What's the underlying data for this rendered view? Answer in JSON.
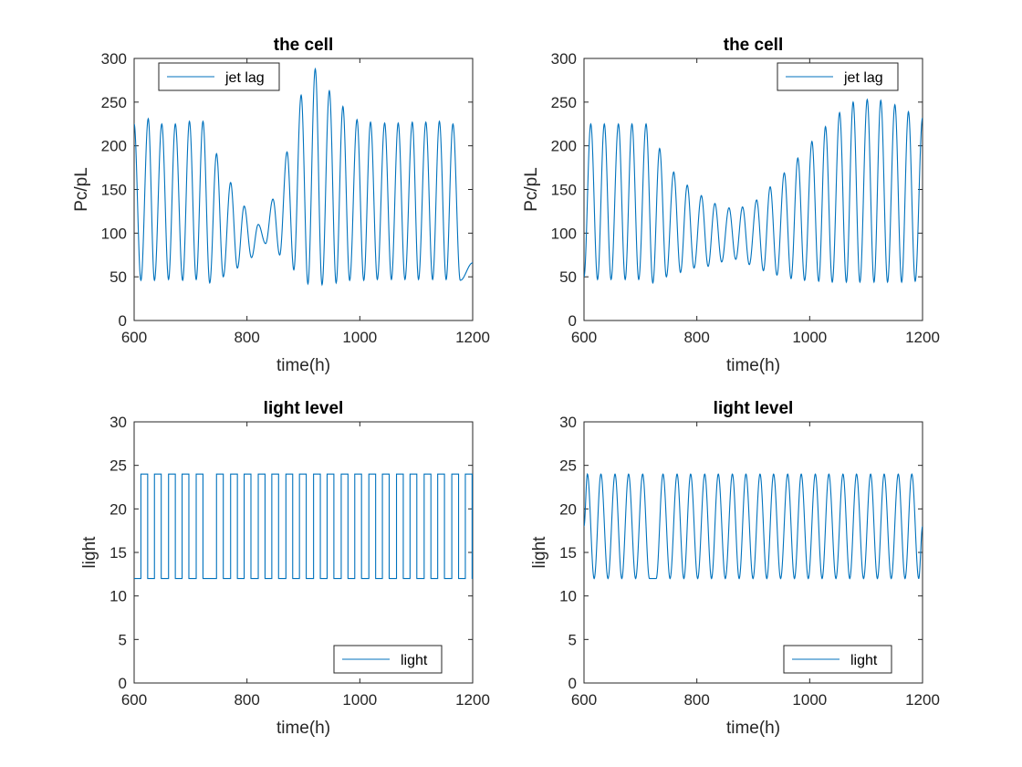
{
  "colors": {
    "series": "#0072BD",
    "axis": "#262626",
    "background": "#ffffff"
  },
  "chart_data": [
    {
      "type": "line",
      "title": "the cell",
      "xlabel": "time(h)",
      "ylabel": "Pc/pL",
      "xlim": [
        600,
        1200
      ],
      "ylim": [
        0,
        300
      ],
      "xticks": [
        600,
        800,
        1000,
        1200
      ],
      "yticks": [
        0,
        50,
        100,
        150,
        200,
        250,
        300
      ],
      "legend": {
        "position": "top-left",
        "entries": [
          "jet lag"
        ]
      },
      "grid": false,
      "series": [
        {
          "name": "jet lag",
          "peaks": [
            [
              600,
              225
            ],
            [
              625,
              231
            ],
            [
              649,
              225
            ],
            [
              673,
              225
            ],
            [
              698,
              228
            ],
            [
              722,
              228
            ],
            [
              746,
              191
            ],
            [
              771,
              158
            ],
            [
              795,
              131
            ],
            [
              820,
              110
            ],
            [
              846,
              139
            ],
            [
              871,
              193
            ],
            [
              896,
              258
            ],
            [
              921,
              288
            ],
            [
              946,
              263
            ],
            [
              970,
              245
            ],
            [
              995,
              230
            ],
            [
              1019,
              227
            ],
            [
              1044,
              226
            ],
            [
              1068,
              226
            ],
            [
              1093,
              227
            ],
            [
              1117,
              227
            ],
            [
              1141,
              228
            ],
            [
              1165,
              225
            ]
          ],
          "troughs": [
            [
              612,
              46
            ],
            [
              636,
              46
            ],
            [
              661,
              47
            ],
            [
              686,
              46
            ],
            [
              710,
              47
            ],
            [
              734,
              43
            ],
            [
              758,
              50
            ],
            [
              783,
              60
            ],
            [
              808,
              72
            ],
            [
              833,
              88
            ],
            [
              858,
              75
            ],
            [
              883,
              58
            ],
            [
              908,
              42
            ],
            [
              933,
              41
            ],
            [
              958,
              43
            ],
            [
              982,
              46
            ],
            [
              1007,
              46
            ],
            [
              1031,
              47
            ],
            [
              1056,
              47
            ],
            [
              1080,
              47
            ],
            [
              1104,
              47
            ],
            [
              1129,
              47
            ],
            [
              1153,
              47
            ],
            [
              1178,
              46
            ]
          ],
          "end_value": 66
        }
      ]
    },
    {
      "type": "line",
      "title": "the cell",
      "xlabel": "time(h)",
      "ylabel": "Pc/pL",
      "xlim": [
        600,
        1200
      ],
      "ylim": [
        0,
        300
      ],
      "xticks": [
        600,
        800,
        1000,
        1200
      ],
      "yticks": [
        0,
        50,
        100,
        150,
        200,
        250,
        300
      ],
      "legend": {
        "position": "top-right",
        "entries": [
          "jet lag"
        ]
      },
      "grid": false,
      "series": [
        {
          "name": "jet lag",
          "start_value": 68,
          "peaks": [
            [
              612,
              225
            ],
            [
              636,
              225
            ],
            [
              661,
              225
            ],
            [
              685,
              225
            ],
            [
              710,
              225
            ],
            [
              734,
              197
            ],
            [
              759,
              170
            ],
            [
              783,
              155
            ],
            [
              808,
              143
            ],
            [
              832,
              134
            ],
            [
              857,
              129
            ],
            [
              881,
              130
            ],
            [
              906,
              138
            ],
            [
              930,
              153
            ],
            [
              955,
              169
            ],
            [
              979,
              186
            ],
            [
              1004,
              205
            ],
            [
              1028,
              222
            ],
            [
              1053,
              238
            ],
            [
              1077,
              250
            ],
            [
              1102,
              253
            ],
            [
              1126,
              252
            ],
            [
              1151,
              247
            ],
            [
              1175,
              239
            ],
            [
              1200,
              232
            ]
          ],
          "troughs": [
            [
              600,
              50
            ],
            [
              624,
              47
            ],
            [
              648,
              47
            ],
            [
              673,
              47
            ],
            [
              697,
              47
            ],
            [
              722,
              43
            ],
            [
              746,
              50
            ],
            [
              771,
              55
            ],
            [
              795,
              60
            ],
            [
              820,
              62
            ],
            [
              844,
              67
            ],
            [
              869,
              70
            ],
            [
              893,
              64
            ],
            [
              918,
              57
            ],
            [
              942,
              52
            ],
            [
              967,
              48
            ],
            [
              991,
              46
            ],
            [
              1016,
              45
            ],
            [
              1040,
              44
            ],
            [
              1065,
              44
            ],
            [
              1089,
              44
            ],
            [
              1114,
              44
            ],
            [
              1138,
              44
            ],
            [
              1163,
              44
            ],
            [
              1187,
              45
            ]
          ]
        }
      ]
    },
    {
      "type": "line",
      "title": "light level",
      "xlabel": "time(h)",
      "ylabel": "light",
      "xlim": [
        600,
        1200
      ],
      "ylim": [
        0,
        30
      ],
      "xticks": [
        600,
        800,
        1000,
        1200
      ],
      "yticks": [
        0,
        5,
        10,
        15,
        20,
        25,
        30
      ],
      "legend": {
        "position": "bottom-right",
        "entries": [
          "light"
        ]
      },
      "grid": false,
      "series": [
        {
          "name": "light",
          "shape": "square",
          "high": 24,
          "low": 12,
          "high_intervals": [
            [
              612,
              624
            ],
            [
              636,
              648
            ],
            [
              661,
              673
            ],
            [
              685,
              697
            ],
            [
              710,
              722
            ],
            [
              746,
              758
            ],
            [
              771,
              783
            ],
            [
              795,
              807
            ],
            [
              820,
              832
            ],
            [
              844,
              856
            ],
            [
              869,
              881
            ],
            [
              893,
              905
            ],
            [
              918,
              930
            ],
            [
              942,
              954
            ],
            [
              967,
              979
            ],
            [
              991,
              1003
            ],
            [
              1016,
              1028
            ],
            [
              1040,
              1052
            ],
            [
              1065,
              1077
            ],
            [
              1089,
              1101
            ],
            [
              1114,
              1126
            ],
            [
              1138,
              1150
            ],
            [
              1163,
              1175
            ],
            [
              1187,
              1199
            ]
          ]
        }
      ]
    },
    {
      "type": "line",
      "title": "light level",
      "xlabel": "time(h)",
      "ylabel": "light",
      "xlim": [
        600,
        1200
      ],
      "ylim": [
        0,
        30
      ],
      "xticks": [
        600,
        800,
        1000,
        1200
      ],
      "yticks": [
        0,
        5,
        10,
        15,
        20,
        25,
        30
      ],
      "legend": {
        "position": "bottom-right",
        "entries": [
          "light"
        ]
      },
      "grid": false,
      "series": [
        {
          "name": "light",
          "shape": "sinusoid",
          "high": 24,
          "low": 12,
          "start_value": 18,
          "peaks": [
            606,
            630,
            655,
            679,
            704,
            740,
            765,
            789,
            814,
            838,
            863,
            887,
            912,
            936,
            961,
            985,
            1010,
            1034,
            1059,
            1083,
            1108,
            1132,
            1157,
            1181
          ],
          "flat_low_interval": [
            716,
            728
          ],
          "end_value": 18
        }
      ]
    }
  ]
}
